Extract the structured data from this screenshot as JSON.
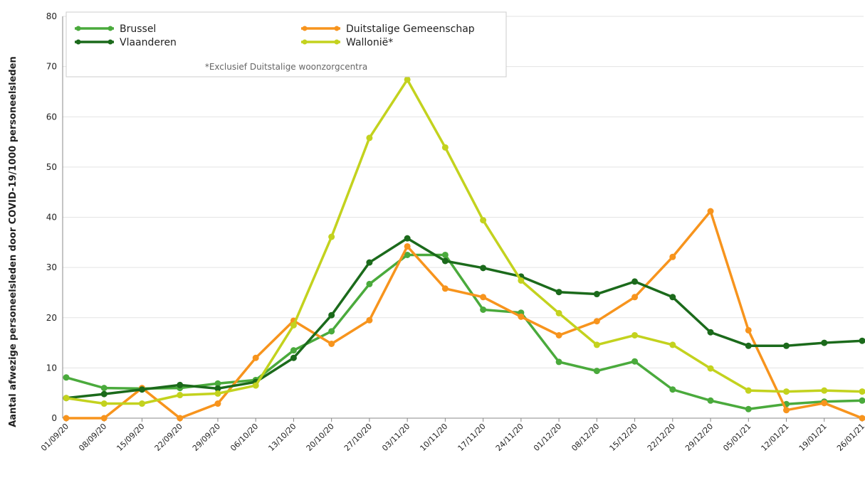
{
  "chart_data": {
    "type": "line",
    "y_label": "Aantal afwezige personeelsleden door COVID-19/1000 personeelsleden",
    "note": "*Exclusief Duitstalige woonzorgcentra",
    "categories": [
      "01/09/20",
      "08/09/20",
      "15/09/20",
      "22/09/20",
      "29/09/20",
      "06/10/20",
      "13/10/20",
      "20/10/20",
      "27/10/20",
      "03/11/20",
      "10/11/20",
      "17/11/20",
      "24/11/20",
      "01/12/20",
      "08/12/20",
      "15/12/20",
      "22/12/20",
      "29/12/20",
      "05/01/21",
      "12/01/21",
      "19/01/21",
      "26/01/21"
    ],
    "series": [
      {
        "name": "Brussel",
        "color": "#4aaa3c",
        "values": [
          8.1,
          6.0,
          5.9,
          6.0,
          6.9,
          7.6,
          13.5,
          17.3,
          26.7,
          32.5,
          32.5,
          21.6,
          21.0,
          11.2,
          9.4,
          11.3,
          5.7,
          3.5,
          1.8,
          2.8,
          3.3,
          3.5
        ]
      },
      {
        "name": "Duitstalige Gemeenschap",
        "color": "#f7941d",
        "values": [
          0,
          0,
          6.0,
          0,
          2.9,
          12.0,
          19.4,
          14.8,
          19.5,
          34.2,
          25.8,
          24.1,
          20.2,
          16.5,
          19.3,
          24.1,
          32.1,
          41.2,
          17.5,
          1.6,
          3.0,
          0
        ]
      },
      {
        "name": "Vlaanderen",
        "color": "#1b6a1b",
        "values": [
          4.0,
          4.8,
          5.7,
          6.6,
          5.9,
          7.2,
          12.0,
          20.5,
          31.0,
          35.8,
          31.3,
          29.9,
          28.2,
          25.1,
          24.7,
          27.2,
          24.1,
          17.1,
          14.4,
          14.4,
          15.0,
          15.4
        ]
      },
      {
        "name": "Wallonië*",
        "color": "#c3d21e",
        "values": [
          4.0,
          2.9,
          2.9,
          4.6,
          4.9,
          6.5,
          18.5,
          36.1,
          55.8,
          67.4,
          53.9,
          39.4,
          27.4,
          20.9,
          14.6,
          16.5,
          14.6,
          9.9,
          5.5,
          5.3,
          5.5,
          5.3
        ]
      }
    ],
    "ylim": [
      0,
      80
    ],
    "yticks": [
      0,
      10,
      20,
      30,
      40,
      50,
      60,
      70,
      80
    ],
    "grid": true
  }
}
